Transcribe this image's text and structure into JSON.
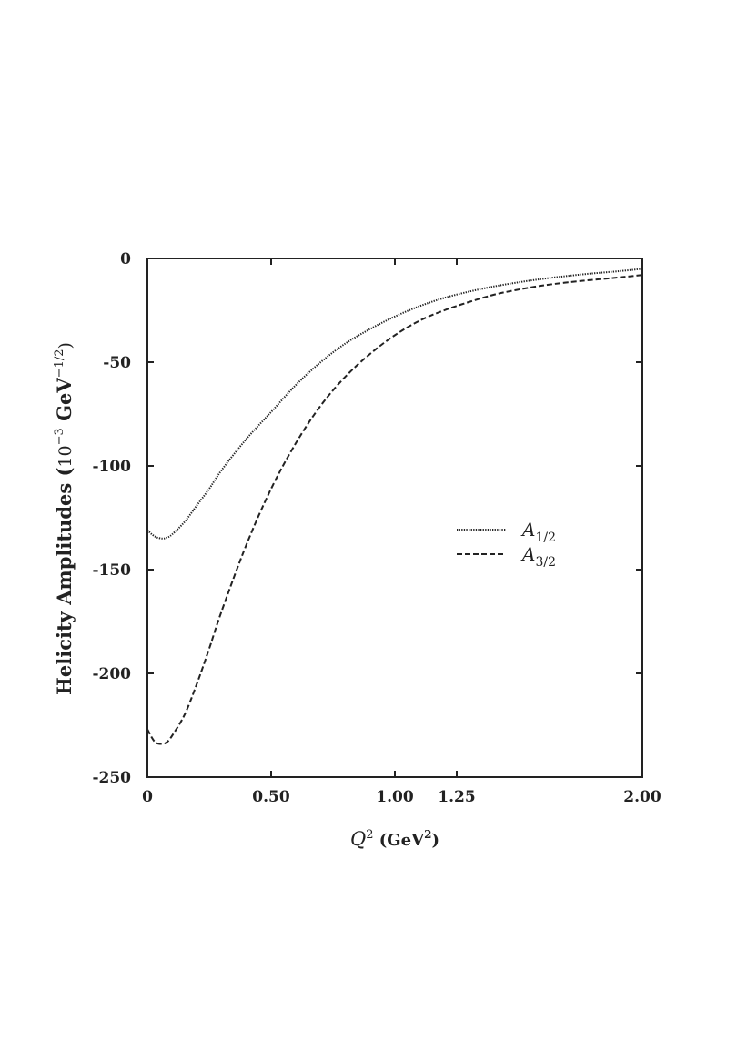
{
  "chart_data": {
    "type": "line",
    "title": "",
    "xlabel": {
      "italic": "Q",
      "sup": "2",
      "rest": " (GeV",
      "unit_sup": "2",
      "close": ")"
    },
    "ylabel": {
      "main": "Helicity Amplitudes (",
      "base": "10",
      "exp": "−3",
      "unit": "  GeV",
      "unit_exp": "−1/2",
      "close": ")"
    },
    "xlim": [
      0,
      2.0
    ],
    "ylim": [
      -250,
      0
    ],
    "xticks": [
      0,
      0.5,
      1.0,
      1.25,
      2.0
    ],
    "xtick_labels": [
      "0",
      "0.50",
      "1.00",
      "1.25",
      "2.00"
    ],
    "yticks": [
      0,
      -50,
      -100,
      -150,
      -200,
      -250
    ],
    "ytick_labels": [
      "0",
      "-50",
      "-100",
      "-150",
      "-200",
      "-250"
    ],
    "grid": false,
    "legend_position": "right-middle",
    "series": [
      {
        "name": "A1/2",
        "legend": {
          "base": "A",
          "sub": "1/2"
        },
        "style": "dotted",
        "x": [
          0,
          0.03,
          0.06,
          0.08,
          0.1,
          0.15,
          0.2,
          0.25,
          0.3,
          0.4,
          0.5,
          0.6,
          0.7,
          0.8,
          0.9,
          1.0,
          1.1,
          1.2,
          1.3,
          1.4,
          1.5,
          1.6,
          1.7,
          1.8,
          1.9,
          2.0
        ],
        "y": [
          -131,
          -134,
          -135,
          -134.5,
          -133,
          -127,
          -119,
          -111,
          -102,
          -87,
          -74,
          -61,
          -50,
          -41,
          -34,
          -28,
          -23,
          -19,
          -16,
          -13.5,
          -11.5,
          -9.8,
          -8.4,
          -7.2,
          -6.2,
          -5
        ]
      },
      {
        "name": "A3/2",
        "legend": {
          "base": "A",
          "sub": "3/2"
        },
        "style": "dashed",
        "x": [
          0,
          0.03,
          0.06,
          0.08,
          0.1,
          0.15,
          0.2,
          0.25,
          0.3,
          0.4,
          0.5,
          0.6,
          0.7,
          0.8,
          0.9,
          1.0,
          1.1,
          1.2,
          1.3,
          1.4,
          1.5,
          1.6,
          1.7,
          1.8,
          1.9,
          2.0
        ],
        "y": [
          -227,
          -233,
          -234,
          -233,
          -230,
          -220,
          -205,
          -188,
          -170,
          -138,
          -111,
          -89,
          -71,
          -57,
          -46,
          -37,
          -30,
          -25,
          -21,
          -17.5,
          -15,
          -13,
          -11.5,
          -10.3,
          -9.2,
          -8
        ]
      }
    ]
  }
}
